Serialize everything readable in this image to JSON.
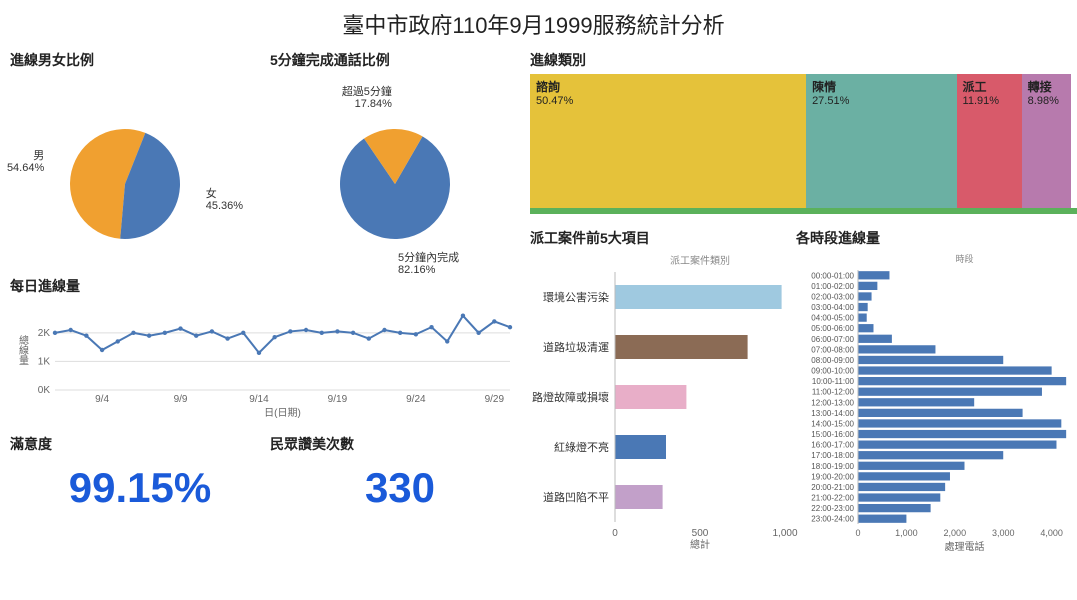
{
  "title": "臺中市政府110年9月1999服務統計分析",
  "gender_pie": {
    "title": "進線男女比例",
    "type": "pie",
    "slices": [
      {
        "label": "男",
        "pct": 54.64,
        "color": "#f0a030",
        "label_text": "男\n54.64%"
      },
      {
        "label": "女",
        "pct": 45.36,
        "color": "#4a78b5",
        "label_text": "女\n45.36%"
      }
    ]
  },
  "five_min_pie": {
    "title": "5分鐘完成通話比例",
    "type": "pie",
    "slices": [
      {
        "label": "5分鐘內完成",
        "pct": 82.16,
        "color": "#4a78b5",
        "label_text": "5分鐘內完成\n82.16%"
      },
      {
        "label": "超過5分鐘",
        "pct": 17.84,
        "color": "#f0a030",
        "label_text": "超過5分鐘\n17.84%"
      }
    ]
  },
  "daily_line": {
    "title": "每日進線量",
    "type": "line",
    "y_label": "總線量",
    "x_label": "日(日期)",
    "y_ticks": [
      0,
      1000,
      2000
    ],
    "y_tick_labels": [
      "0K",
      "1K",
      "2K"
    ],
    "x_tick_labels": [
      "9/4",
      "9/9",
      "9/14",
      "9/19",
      "9/24",
      "9/29"
    ],
    "x_tick_positions": [
      3,
      8,
      13,
      18,
      23,
      28
    ],
    "values": [
      2000,
      2100,
      1900,
      1400,
      1700,
      2000,
      1900,
      2000,
      2150,
      1900,
      2050,
      1800,
      2000,
      1300,
      1850,
      2050,
      2100,
      2000,
      2050,
      2000,
      1800,
      2100,
      2000,
      1950,
      2200,
      1700,
      2600,
      2000,
      2400,
      2200
    ],
    "line_color": "#4a78b5",
    "grid_color": "#dddddd"
  },
  "kpi_satisfaction": {
    "title": "滿意度",
    "value": "99.15%",
    "color": "#1a5ad9"
  },
  "kpi_praise": {
    "title": "民眾讚美次數",
    "value": "330",
    "color": "#1a5ad9"
  },
  "category_treemap": {
    "title": "進線類別",
    "type": "treemap",
    "cells": [
      {
        "label": "諮詢",
        "pct": "50.47%",
        "width": 50.47,
        "color": "#e5c23a"
      },
      {
        "label": "陳情",
        "pct": "27.51%",
        "width": 27.51,
        "color": "#6bb0a3"
      },
      {
        "label": "派工",
        "pct": "11.91%",
        "width": 11.91,
        "color": "#d85a6a"
      },
      {
        "label": "轉接",
        "pct": "8.98%",
        "width": 8.98,
        "color": "#b77aad"
      }
    ],
    "footer_color": "#5bb15b"
  },
  "top5_bars": {
    "title": "派工案件前5大項目",
    "sub_header": "派工案件類別",
    "type": "bar-horizontal",
    "x_label": "總計",
    "x_max": 1000,
    "x_ticks": [
      0,
      500,
      1000
    ],
    "items": [
      {
        "label": "環境公害污染",
        "value": 980,
        "color": "#9fc9e0"
      },
      {
        "label": "道路垃圾清運",
        "value": 780,
        "color": "#8b6b55"
      },
      {
        "label": "路燈故障或損壞",
        "value": 420,
        "color": "#e8aec8"
      },
      {
        "label": "紅綠燈不亮",
        "value": 300,
        "color": "#4a78b5"
      },
      {
        "label": "道路凹陷不平",
        "value": 280,
        "color": "#c2a0c9"
      }
    ]
  },
  "hourly_bars": {
    "title": "各時段進線量",
    "sub_header": "時段",
    "type": "bar-horizontal",
    "x_label": "處理電話",
    "x_max": 4400,
    "x_ticks": [
      0,
      1000,
      2000,
      3000,
      4000
    ],
    "bar_color": "#4a78b5",
    "items": [
      {
        "label": "00:00-01:00",
        "value": 650
      },
      {
        "label": "01:00-02:00",
        "value": 400
      },
      {
        "label": "02:00-03:00",
        "value": 280
      },
      {
        "label": "03:00-04:00",
        "value": 200
      },
      {
        "label": "04:00-05:00",
        "value": 180
      },
      {
        "label": "05:00-06:00",
        "value": 320
      },
      {
        "label": "06:00-07:00",
        "value": 700
      },
      {
        "label": "07:00-08:00",
        "value": 1600
      },
      {
        "label": "08:00-09:00",
        "value": 3000
      },
      {
        "label": "09:00-10:00",
        "value": 4000
      },
      {
        "label": "10:00-11:00",
        "value": 4300
      },
      {
        "label": "11:00-12:00",
        "value": 3800
      },
      {
        "label": "12:00-13:00",
        "value": 2400
      },
      {
        "label": "13:00-14:00",
        "value": 3400
      },
      {
        "label": "14:00-15:00",
        "value": 4200
      },
      {
        "label": "15:00-16:00",
        "value": 4300
      },
      {
        "label": "16:00-17:00",
        "value": 4100
      },
      {
        "label": "17:00-18:00",
        "value": 3000
      },
      {
        "label": "18:00-19:00",
        "value": 2200
      },
      {
        "label": "19:00-20:00",
        "value": 1900
      },
      {
        "label": "20:00-21:00",
        "value": 1800
      },
      {
        "label": "21:00-22:00",
        "value": 1700
      },
      {
        "label": "22:00-23:00",
        "value": 1500
      },
      {
        "label": "23:00-24:00",
        "value": 1000
      }
    ]
  }
}
